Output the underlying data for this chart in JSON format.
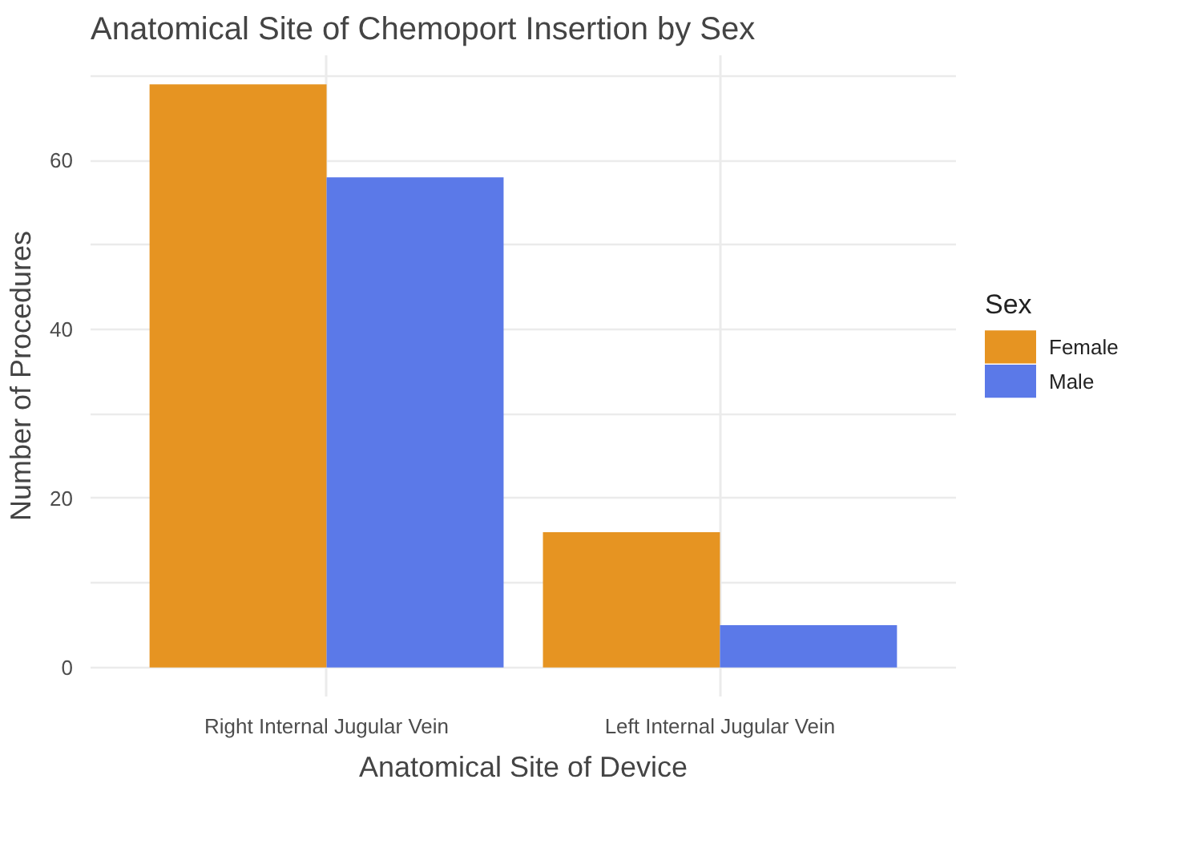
{
  "chart_data": {
    "type": "bar",
    "title": "Anatomical Site of Chemoport Insertion by Sex",
    "xlabel": "Anatomical Site of Device",
    "ylabel": "Number of Procedures",
    "legend_title": "Sex",
    "categories": [
      "Right Internal Jugular Vein",
      "Left Internal Jugular Vein"
    ],
    "series": [
      {
        "name": "Female",
        "color": "#e69422",
        "values": [
          69,
          16
        ]
      },
      {
        "name": "Male",
        "color": "#5b79e8",
        "values": [
          58,
          5
        ]
      }
    ],
    "ylim": [
      -3.45,
      72.45
    ],
    "yticks": [
      0,
      {
        "value": 10,
        "label": null
      },
      20,
      {
        "value": 30,
        "label": null
      },
      40,
      {
        "value": 50,
        "label": null
      },
      60,
      {
        "value": 70,
        "label": null
      }
    ],
    "grid": true,
    "legend": "right"
  }
}
